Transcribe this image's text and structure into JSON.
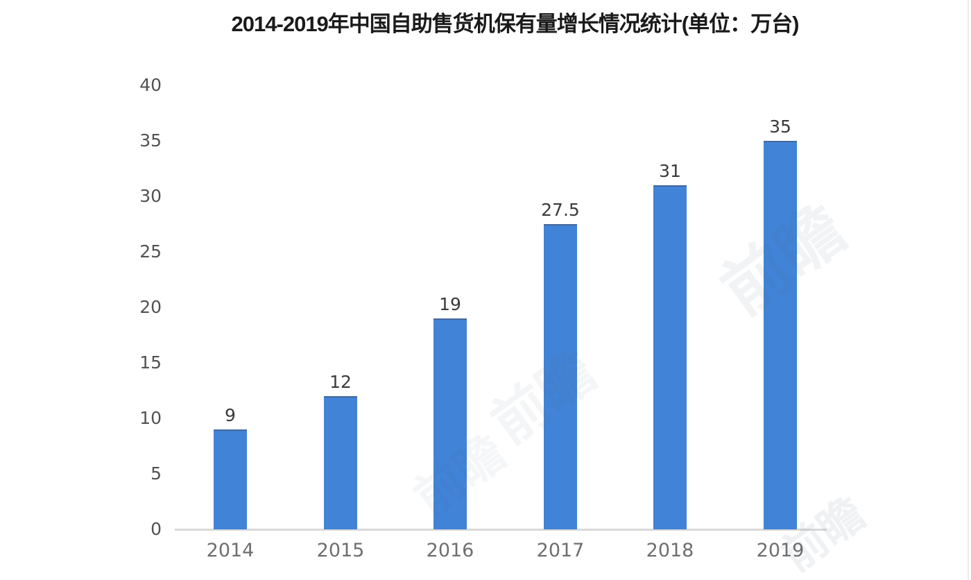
{
  "title": "2014-2019年中国自助售货机保有量增长情况统计(单位：万台)",
  "chart_data": {
    "type": "bar",
    "title": "2014-2019年中国自助售货机保有量增长情况统计(单位：万台)",
    "categories": [
      "2014",
      "2015",
      "2016",
      "2017",
      "2018",
      "2019"
    ],
    "values": [
      9,
      12,
      19,
      27.5,
      31,
      35
    ],
    "data_labels": [
      "9",
      "12",
      "19",
      "27.5",
      "31",
      "35"
    ],
    "xlabel": "",
    "ylabel": "",
    "ylim": [
      0,
      40
    ],
    "yticks": [
      0,
      5,
      10,
      15,
      20,
      25,
      30,
      35,
      40
    ],
    "grid": false,
    "legend_position": "none",
    "bar_color": "#4183d6",
    "bar_top_edge_color": "#46689b",
    "axis_line_color": "#d9d9d9",
    "tick_label_color": "#525252",
    "value_label_color": "#3a3a3a",
    "category_label_color": "#6e6e6e",
    "title_color": "#1a1a1a"
  },
  "watermark": {
    "text": "前瞻"
  }
}
